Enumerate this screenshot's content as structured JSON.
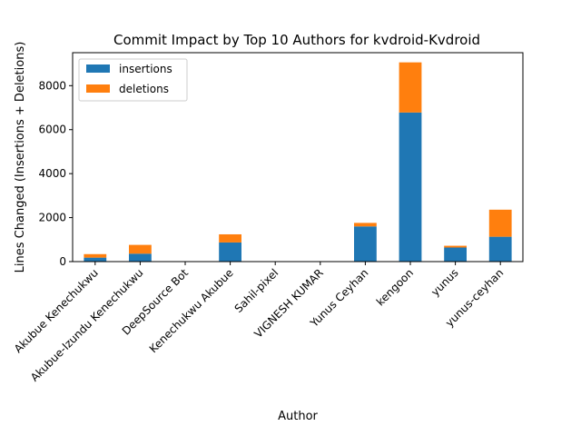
{
  "chart_data": {
    "type": "bar",
    "stacked": true,
    "title": "Commit Impact by Top 10 Authors for kvdroid-Kvdroid",
    "xlabel": "Author",
    "ylabel": "Lines Changed (Insertions + Deletions)",
    "categories": [
      "Akubue Kenechukwu",
      "Akubue-Izundu Kenechukwu",
      "DeepSource Bot",
      "Kenechukwu Akubue",
      "Sahil-pixel",
      "VIGNESH KUMAR",
      "Yunus Ceyhan",
      "kengoon",
      "yunus",
      "yunus-ceyhan"
    ],
    "series": [
      {
        "name": "insertions",
        "color": "#1f77b4",
        "values": [
          180,
          360,
          2,
          870,
          2,
          2,
          1600,
          6780,
          640,
          1130
        ]
      },
      {
        "name": "deletions",
        "color": "#ff7f0e",
        "values": [
          160,
          400,
          1,
          370,
          1,
          1,
          160,
          2280,
          80,
          1230
        ]
      }
    ],
    "ylim": [
      0,
      9500
    ],
    "yticks": [
      0,
      2000,
      4000,
      6000,
      8000
    ],
    "grid": false,
    "legend_position": "top-left"
  }
}
